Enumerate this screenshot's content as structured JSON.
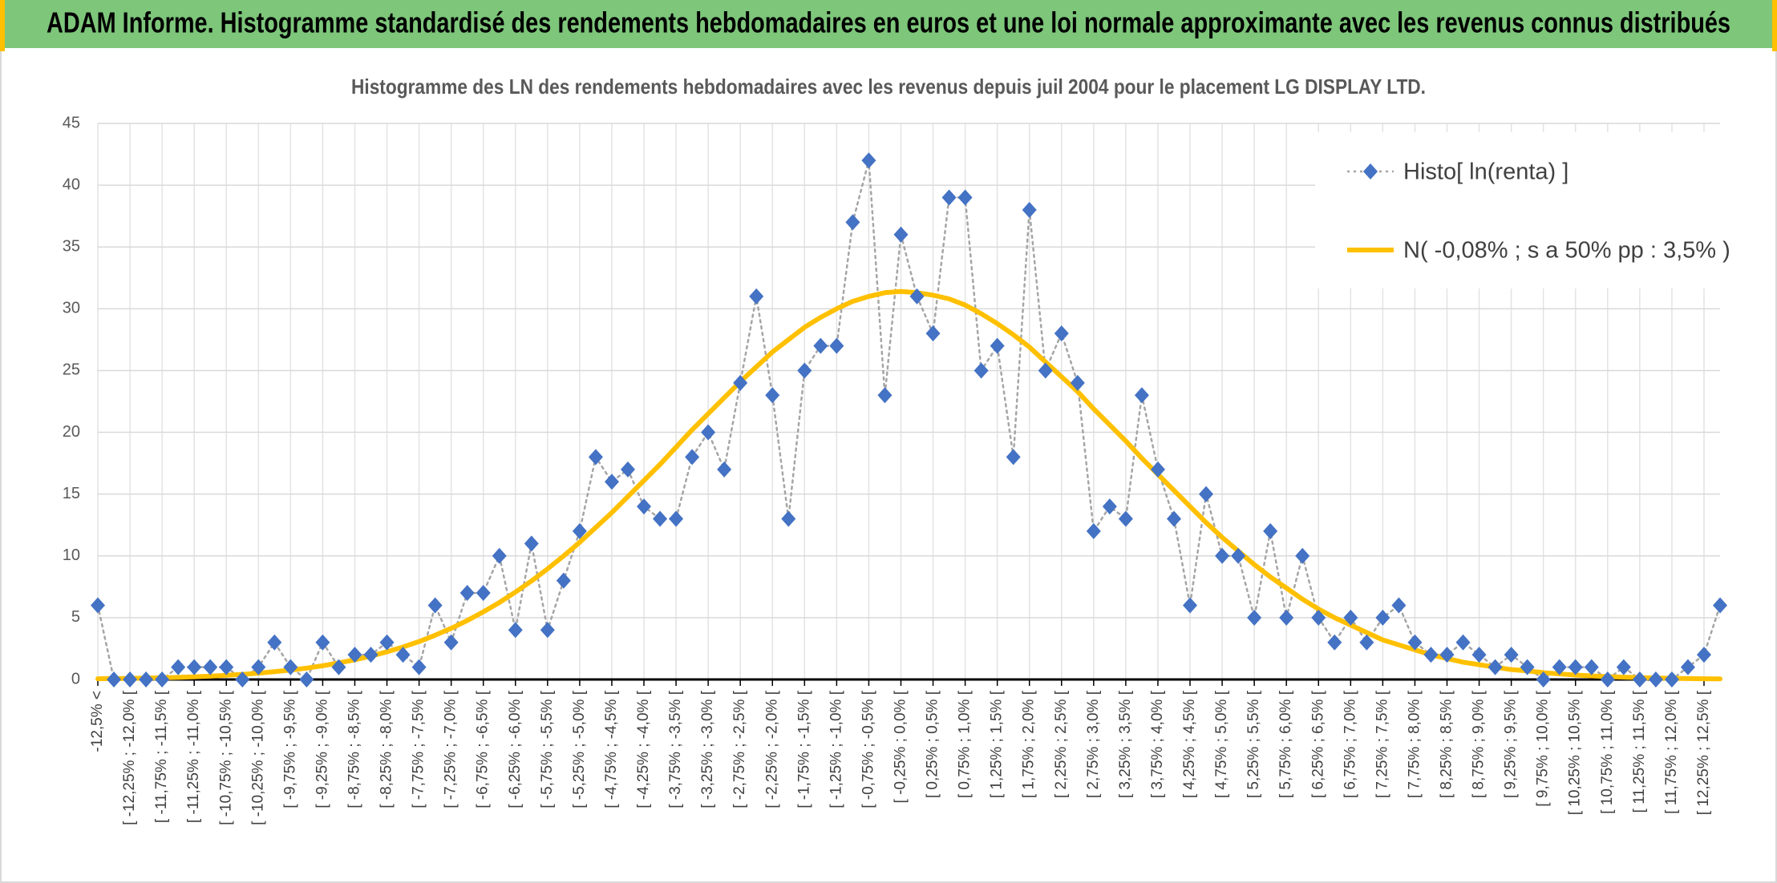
{
  "header": {
    "title": "ADAM Informe. Histogramme standardisé des rendements hebdomadaires en euros et une loi normale approximante avec les revenus connus distribués"
  },
  "chart_data": {
    "type": "line",
    "title": "Histogramme des LN des rendements hebdomadaires avec les revenus depuis juil 2004 pour le placement LG DISPLAY LTD.",
    "categories": [
      "-12,5% <",
      null,
      "[ -12,25% ; -12,0% [",
      null,
      "[ -11,75% ; -11,5% [",
      null,
      "[ -11,25% ; -11,0% [",
      null,
      "[ -10,75% ; -10,5% [",
      null,
      "[ -10,25% ; -10,0% [",
      null,
      "[ -9,75% ; -9,5% [",
      null,
      "[ -9,25% ; -9,0% [",
      null,
      "[ -8,75% ; -8,5% [",
      null,
      "[ -8,25% ; -8,0% [",
      null,
      "[ -7,75% ; -7,5% [",
      null,
      "[ -7,25% ; -7,0% [",
      null,
      "[ -6,75% ; -6,5% [",
      null,
      "[ -6,25% ; -6,0% [",
      null,
      "[ -5,75% ; -5,5% [",
      null,
      "[ -5,25% ; -5,0% [",
      null,
      "[ -4,75% ; -4,5% [",
      null,
      "[ -4,25% ; -4,0% [",
      null,
      "[ -3,75% ; -3,5% [",
      null,
      "[ -3,25% ; -3,0% [",
      null,
      "[ -2,75% ; -2,5% [",
      null,
      "[ -2,25% ; -2,0% [",
      null,
      "[ -1,75% ; -1,5% [",
      null,
      "[ -1,25% ; -1,0% [",
      null,
      "[ -0,75% ; -0,5% [",
      null,
      "[ -0,25% ; 0,0% [",
      null,
      "[ 0,25% ; 0,5% [",
      null,
      "[ 0,75% ; 1,0% [",
      null,
      "[ 1,25% ; 1,5% [",
      null,
      "[ 1,75% ; 2,0% [",
      null,
      "[ 2,25% ; 2,5% [",
      null,
      "[ 2,75% ; 3,0% [",
      null,
      "[ 3,25% ; 3,5% [",
      null,
      "[ 3,75% ; 4,0% [",
      null,
      "[ 4,25% ; 4,5% [",
      null,
      "[ 4,75% ; 5,0% [",
      null,
      "[ 5,25% ; 5,5% [",
      null,
      "[ 5,75% ; 6,0% [",
      null,
      "[ 6,25% ; 6,5% [",
      null,
      "[ 6,75% ; 7,0% [",
      null,
      "[ 7,25% ; 7,5% [",
      null,
      "[ 7,75% ; 8,0% [",
      null,
      "[ 8,25% ; 8,5% [",
      null,
      "[ 8,75% ; 9,0% [",
      null,
      "[ 9,25% ; 9,5% [",
      null,
      "[ 9,75% ; 10,0% [",
      null,
      "[ 10,25% ; 10,5% [",
      null,
      "[ 10,75% ; 11,0% [",
      null,
      "[ 11,25% ; 11,5% [",
      null,
      "[ 11,75% ; 12,0% [",
      null,
      "[ 12,25% ; 12,5% [",
      null
    ],
    "series": [
      {
        "name": "Histo[ ln(renta) ]",
        "color": "#4472c4",
        "line_color": "#a5a5a5",
        "line_dash": "dotted",
        "marker": "diamond",
        "values": [
          6,
          0,
          0,
          0,
          0,
          1,
          1,
          1,
          1,
          0,
          1,
          3,
          1,
          0,
          3,
          1,
          2,
          2,
          3,
          2,
          1,
          6,
          3,
          7,
          7,
          10,
          4,
          11,
          4,
          8,
          12,
          18,
          16,
          17,
          14,
          13,
          13,
          18,
          20,
          17,
          24,
          31,
          23,
          13,
          25,
          27,
          27,
          37,
          42,
          23,
          36,
          31,
          28,
          39,
          39,
          25,
          27,
          18,
          38,
          25,
          28,
          24,
          12,
          14,
          13,
          23,
          17,
          13,
          6,
          15,
          10,
          10,
          5,
          12,
          5,
          10,
          5,
          3,
          5,
          3,
          5,
          6,
          3,
          2,
          2,
          3,
          2,
          1,
          2,
          1,
          0,
          1,
          1,
          1,
          0,
          1,
          0,
          0,
          0,
          1,
          2,
          6
        ]
      },
      {
        "name": "N( -0,08% ; s a 50% pp : 3,5% )",
        "color": "#ffc000",
        "marker": "none",
        "values": [
          0.06,
          0.07,
          0.08,
          0.11,
          0.14,
          0.17,
          0.22,
          0.27,
          0.34,
          0.41,
          0.51,
          0.63,
          0.76,
          0.92,
          1.11,
          1.34,
          1.59,
          1.89,
          2.24,
          2.63,
          3.07,
          3.58,
          4.14,
          4.77,
          5.47,
          6.23,
          7.07,
          7.97,
          8.95,
          10.0,
          11.1,
          12.3,
          13.5,
          14.8,
          16.1,
          17.4,
          18.8,
          20.2,
          21.5,
          22.8,
          24.1,
          25.3,
          26.5,
          27.5,
          28.5,
          29.3,
          30.0,
          30.6,
          31.0,
          31.3,
          31.4,
          31.3,
          31.1,
          30.8,
          30.3,
          29.6,
          28.8,
          27.9,
          26.9,
          25.7,
          24.5,
          23.3,
          21.9,
          20.6,
          19.3,
          17.9,
          16.6,
          15.3,
          14.0,
          12.7,
          11.5,
          10.4,
          9.3,
          8.3,
          7.4,
          6.5,
          5.7,
          5.0,
          4.4,
          3.8,
          3.2,
          2.8,
          2.4,
          2.0,
          1.7,
          1.4,
          1.2,
          1.0,
          0.8,
          0.7,
          0.55,
          0.45,
          0.36,
          0.29,
          0.23,
          0.19,
          0.15,
          0.12,
          0.09,
          0.07,
          0.06,
          0.05
        ]
      }
    ],
    "ylim": [
      0,
      45
    ],
    "yticks": [
      0,
      5,
      10,
      15,
      20,
      25,
      30,
      35,
      40,
      45
    ],
    "grid": true,
    "legend": "top-right"
  }
}
